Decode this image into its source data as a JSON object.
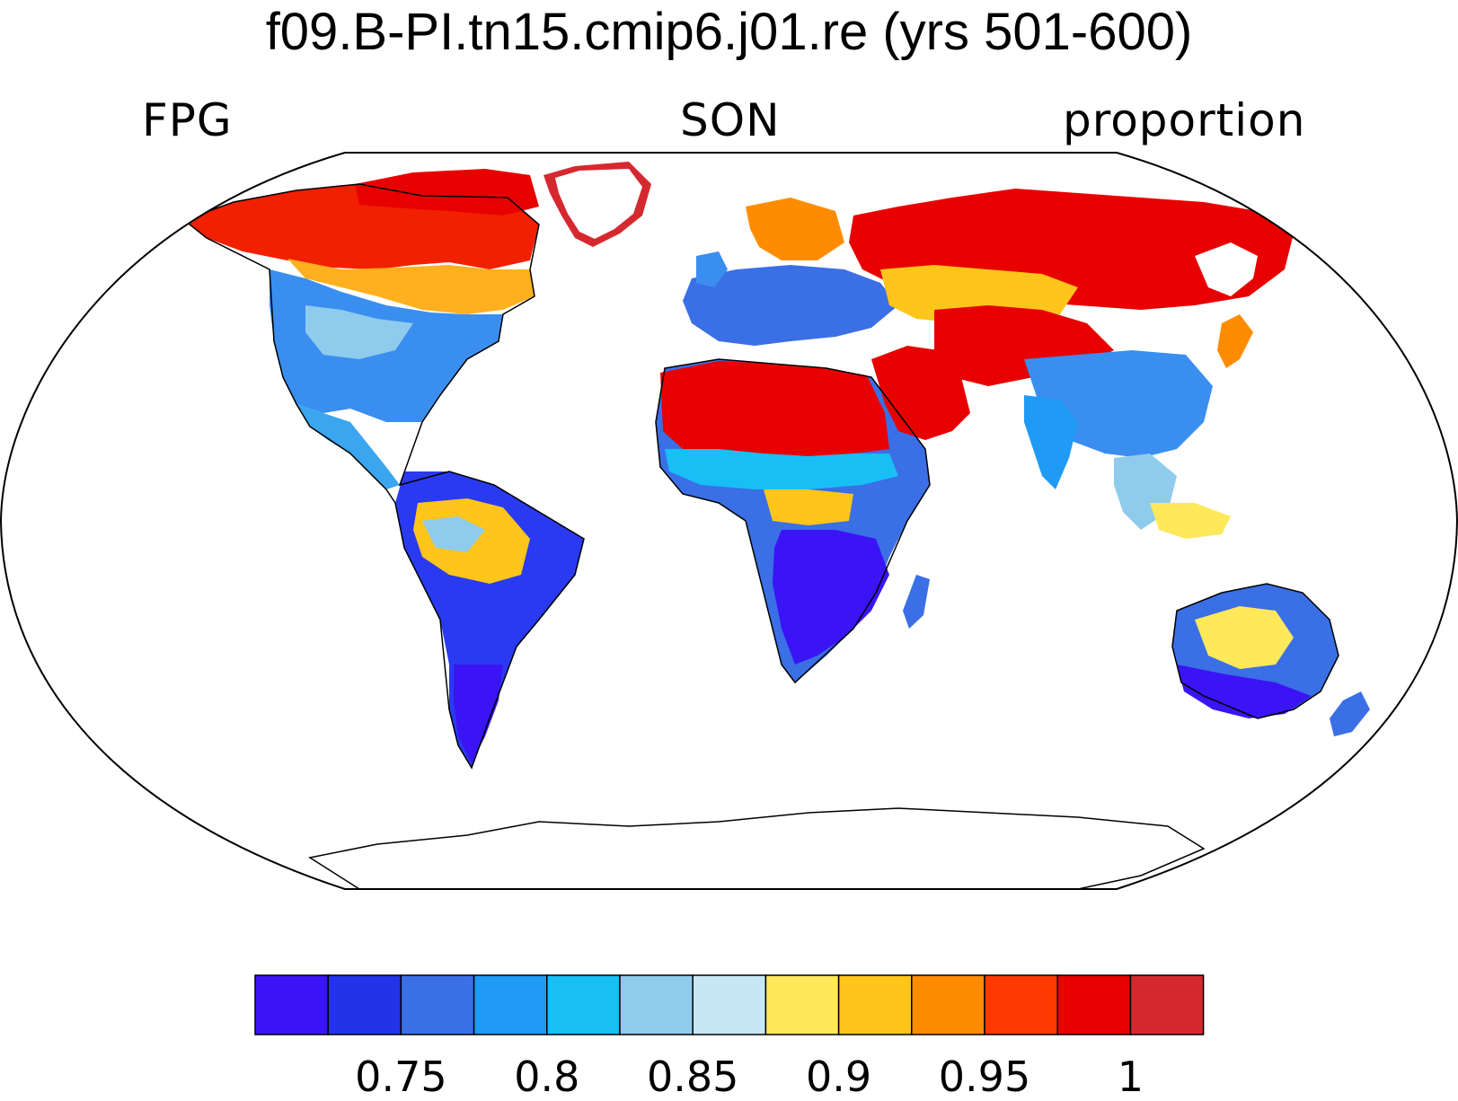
{
  "title": "f09.B-PI.tn15.cmip6.j01.re (yrs 501-600)",
  "left_label": "FPG",
  "center_label": "SON",
  "right_label": "proportion",
  "projection": "Robinson",
  "colorbar": {
    "colors": [
      "#3a14f5",
      "#2233e8",
      "#3a6fe6",
      "#1f9af5",
      "#17bff5",
      "#8fcbec",
      "#c7e7f6",
      "#ffe85a",
      "#ffc51a",
      "#ff8c00",
      "#ff3a00",
      "#e80000",
      "#d6282f"
    ],
    "tick_labels": [
      "0.75",
      "0.8",
      "0.85",
      "0.9",
      "0.95",
      "1"
    ]
  }
}
